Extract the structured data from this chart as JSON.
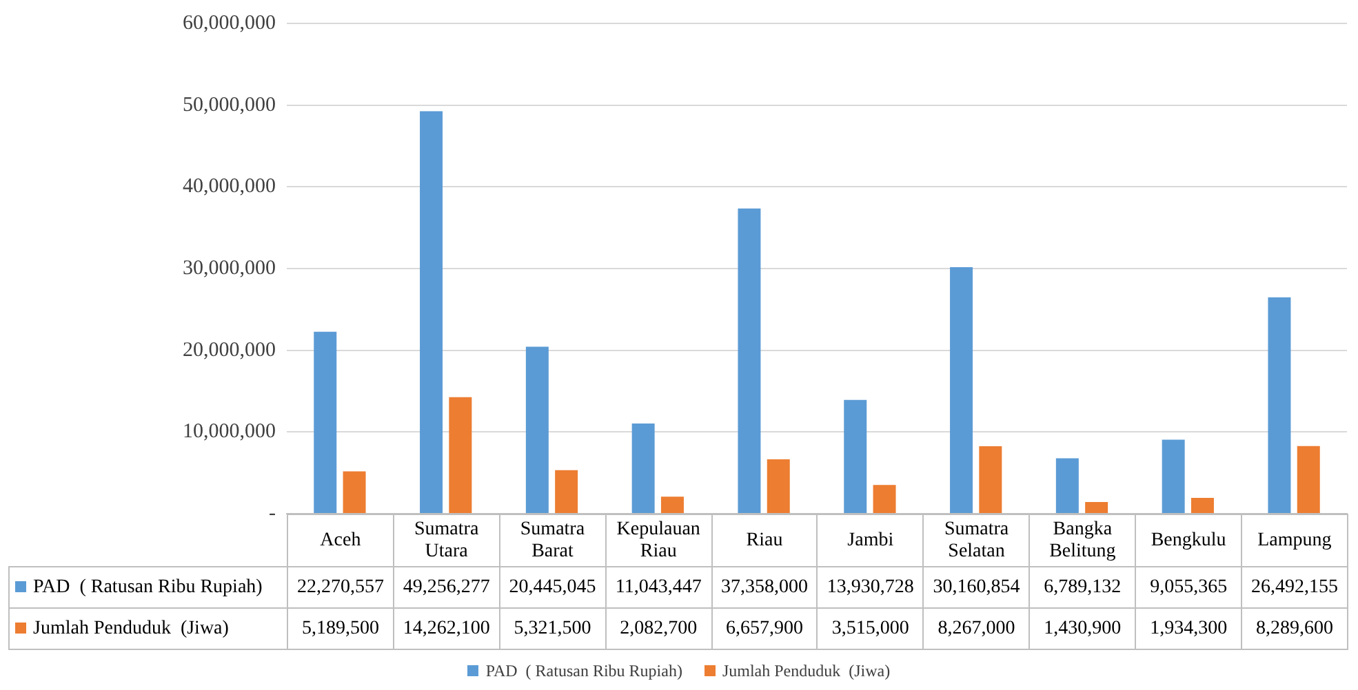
{
  "chart_data": {
    "type": "bar",
    "categories": [
      "Aceh",
      "Sumatra Utara",
      "Sumatra Barat",
      "Kepulauan Riau",
      "Riau",
      "Jambi",
      "Sumatra Selatan",
      "Bangka Belitung",
      "Bengkulu",
      "Lampung"
    ],
    "series": [
      {
        "name": "PAD  ( Ratusan Ribu Rupiah)",
        "color": "#5b9bd5",
        "values": [
          22270557,
          49256277,
          20445045,
          11043447,
          37358000,
          13930728,
          30160854,
          6789132,
          9055365,
          26492155
        ],
        "value_labels": [
          "22,270,557",
          "49,256,277",
          "20,445,045",
          "11,043,447",
          "37,358,000",
          "13,930,728",
          "30,160,854",
          "6,789,132",
          "9,055,365",
          "26,492,155"
        ]
      },
      {
        "name": "Jumlah Penduduk  (Jiwa)",
        "color": "#ed7d31",
        "values": [
          5189500,
          14262100,
          5321500,
          2082700,
          6657900,
          3515000,
          8267000,
          1430900,
          1934300,
          8289600
        ],
        "value_labels": [
          "5,189,500",
          "14,262,100",
          "5,321,500",
          "2,082,700",
          "6,657,900",
          "3,515,000",
          "8,267,000",
          "1,430,900",
          "1,934,300",
          "8,289,600"
        ]
      }
    ],
    "ylim": [
      0,
      60000000
    ],
    "yticks": [
      {
        "value": 0,
        "label": "-"
      },
      {
        "value": 10000000,
        "label": "10,000,000"
      },
      {
        "value": 20000000,
        "label": "20,000,000"
      },
      {
        "value": 30000000,
        "label": "30,000,000"
      },
      {
        "value": 40000000,
        "label": "40,000,000"
      },
      {
        "value": 50000000,
        "label": "50,000,000"
      },
      {
        "value": 60000000,
        "label": "60,000,000"
      }
    ],
    "grid": "y",
    "legend": "bottom"
  }
}
